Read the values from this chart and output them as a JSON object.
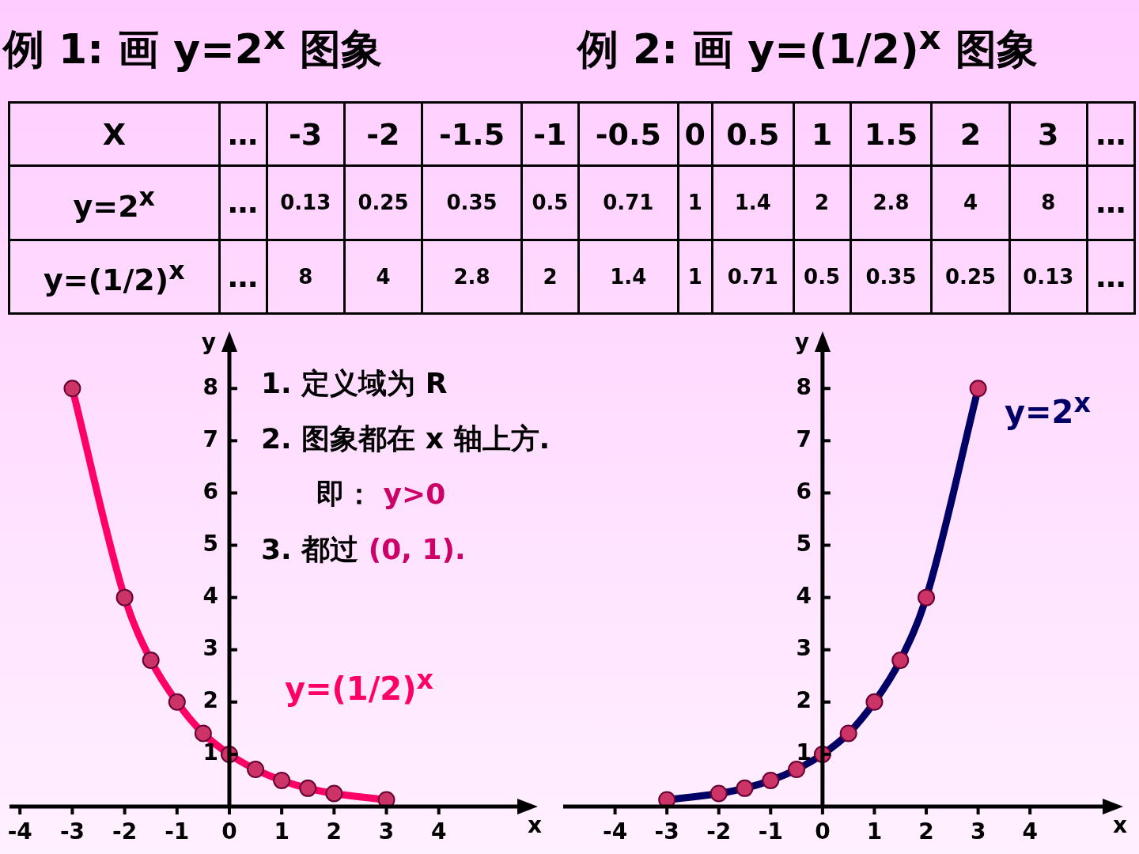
{
  "chart_data": [
    {
      "type": "other",
      "annotations": [
        "例 1: 画 y=2$^{x}$ 图象",
        "例 2: 画 y=(1/2)$^{x}$ 图象",
        "X",
        "…",
        "-3",
        "-2",
        "-1.5",
        "-1",
        "-0.5",
        "0",
        "0.5",
        "1",
        "1.5",
        "2",
        "3",
        "…",
        "y=2$^{x}$",
        "…",
        "0.13",
        "0.25",
        "0.35",
        "0.5",
        "0.71",
        "1",
        "1.4",
        "2",
        "2.8",
        "4",
        "8",
        "…",
        "y=(1/2)$^{x}$",
        "…",
        "8",
        "4",
        "2.8",
        "2",
        "1.4",
        "1",
        "0.71",
        "0.5",
        "0.35",
        "0.25",
        "0.13",
        "…"
      ]
    },
    {
      "type": "line",
      "xlabel": "x",
      "ylabel": "y",
      "x": [
        -3,
        -2,
        -1.5,
        -1,
        -0.5,
        0,
        0.5,
        1,
        1.5,
        2,
        3
      ],
      "series": [
        {
          "name": "y=(1/2)$^{x}$",
          "color": "#ff0066",
          "values": [
            8,
            4,
            2.8,
            2,
            1.4,
            1,
            0.71,
            0.5,
            0.35,
            0.25,
            0.13
          ]
        }
      ],
      "xlim": [
        -4.2,
        5.5
      ],
      "ylim": [
        0,
        8.7
      ],
      "xticks": [
        -4,
        -3,
        -2,
        -1,
        0,
        1,
        2,
        3,
        4
      ],
      "yticks": [
        1,
        2,
        3,
        4,
        5,
        6,
        7,
        8
      ],
      "marker": "circle",
      "line_style": "solid",
      "grid": false,
      "legend": false,
      "annotations": [
        "1. 定义域为 R",
        "2. 图象都在 x 轴上方.",
        "即：",
        "y>0",
        "3. 都过",
        "(0, 1)."
      ]
    },
    {
      "type": "line",
      "xlabel": "x",
      "ylabel": "y",
      "x": [
        -3,
        -2,
        -1.5,
        -1,
        -0.5,
        0,
        0.5,
        1,
        1.5,
        2,
        3
      ],
      "series": [
        {
          "name": "y=2$^{x}$",
          "color": "#000066",
          "values": [
            0.13,
            0.25,
            0.35,
            0.5,
            0.71,
            1,
            1.4,
            2,
            2.8,
            4,
            8
          ]
        }
      ],
      "xlim": [
        -5,
        5.4
      ],
      "ylim": [
        0,
        8.7
      ],
      "xticks": [
        -4,
        -3,
        -2,
        -1,
        0,
        1,
        2,
        3,
        4
      ],
      "yticks": [
        1,
        2,
        3,
        4,
        5,
        6,
        7,
        8
      ],
      "marker": "circle",
      "line_style": "solid",
      "grid": false,
      "legend": false
    }
  ]
}
